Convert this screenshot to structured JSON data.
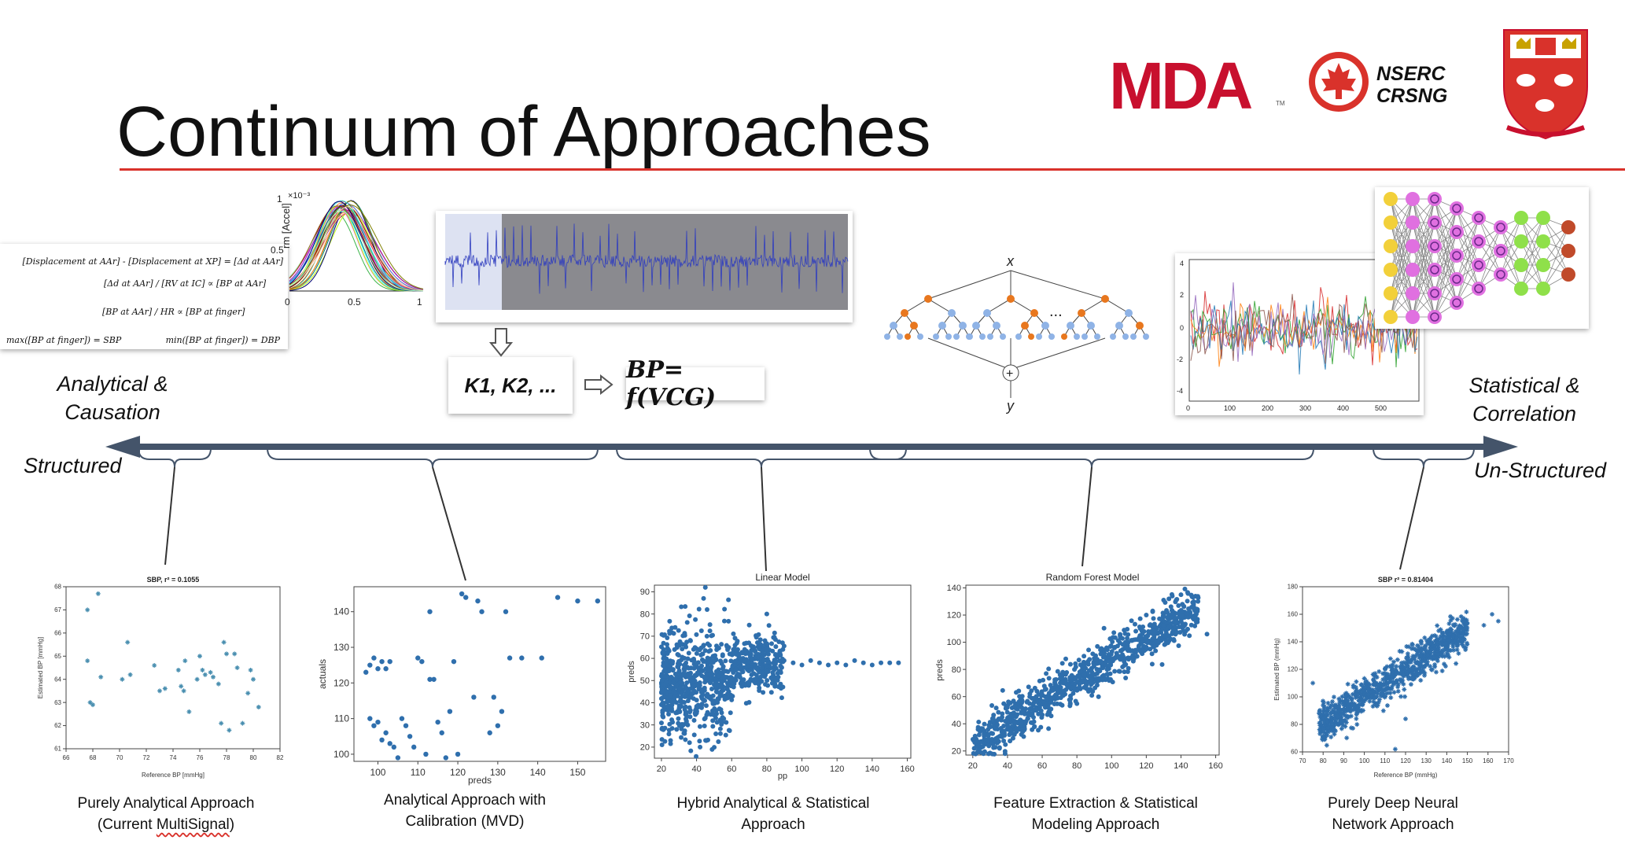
{
  "slide": {
    "title": "Continuum of Approaches",
    "logos": {
      "mda": "MDA",
      "nserc_line1": "NSERC",
      "nserc_line2": "CRSNG"
    }
  },
  "top_row": {
    "equations": [
      "[Displacement at AAr] - [Displacement at XP] = [Δd at AAr]",
      "[Δd at AAr] / [RV at IC] ∝ [BP at AAr]",
      "[BP at AAr] / HR ∝ [BP at finger]",
      "max([BP at finger]) = SBP",
      "min([BP at finger]) = DBP"
    ],
    "curve_plot": {
      "ylabel": "rm [Accel]",
      "y_exp": "×10⁻³",
      "yticks": [
        "1",
        "0.5"
      ],
      "xticks": [
        "0",
        "0.5",
        "1"
      ]
    },
    "k_box": "K1, K2, ...",
    "bp_formula": "BP= f(VCG)",
    "tree_ellipsis": "...",
    "tree_labels": {
      "input": "x",
      "output": "y",
      "sum": "+"
    },
    "noise_plot": {
      "yticks": [
        "4",
        "2",
        "0",
        "-2",
        "-4"
      ],
      "xticks": [
        "0",
        "100",
        "200",
        "300",
        "400",
        "500"
      ]
    }
  },
  "axis": {
    "left_top": "Analytical &",
    "left_bottom": "Causation",
    "left_end": "Structured",
    "right_top": "Statistical &",
    "right_bottom": "Correlation",
    "right_end": "Un-Structured"
  },
  "approaches": [
    {
      "line1": "Purely Analytical Approach",
      "line2_pre": "(Current ",
      "line2_wavy": "MultiSignal",
      "line2_post": ")"
    },
    {
      "line1": "Analytical Approach with",
      "line2": "Calibration (MVD)"
    },
    {
      "line1": "Hybrid Analytical & Statistical",
      "line2": "Approach"
    },
    {
      "line1": "Feature Extraction & Statistical",
      "line2": "Modeling Approach"
    },
    {
      "line1": "Purely Deep Neural",
      "line2": "Network Approach"
    }
  ],
  "chart_data": [
    {
      "type": "scatter",
      "title": "SBP, r² = 0.1055",
      "xlabel": "Reference BP [mmHg]",
      "ylabel": "Estimated BP [mmHg]",
      "xlim": [
        66,
        82
      ],
      "ylim": [
        61,
        68
      ],
      "xticks": [
        66,
        68,
        70,
        72,
        74,
        76,
        78,
        80,
        82
      ],
      "yticks": [
        61,
        62,
        63,
        64,
        65,
        66,
        67,
        68
      ],
      "color": "#4a8fb0",
      "marker": "star",
      "points": [
        [
          67.6,
          67.0
        ],
        [
          68.4,
          67.7
        ],
        [
          67.6,
          64.8
        ],
        [
          67.8,
          63.0
        ],
        [
          68.0,
          62.9
        ],
        [
          68.6,
          64.1
        ],
        [
          70.2,
          64.0
        ],
        [
          70.6,
          65.6
        ],
        [
          70.8,
          64.2
        ],
        [
          72.6,
          64.6
        ],
        [
          73.0,
          63.5
        ],
        [
          73.4,
          63.6
        ],
        [
          74.4,
          64.4
        ],
        [
          74.6,
          63.7
        ],
        [
          74.8,
          63.5
        ],
        [
          74.9,
          64.8
        ],
        [
          75.2,
          62.6
        ],
        [
          75.8,
          64.0
        ],
        [
          76.0,
          65.0
        ],
        [
          76.2,
          64.4
        ],
        [
          76.4,
          64.2
        ],
        [
          76.8,
          64.3
        ],
        [
          77.0,
          64.1
        ],
        [
          77.4,
          63.8
        ],
        [
          77.6,
          62.1
        ],
        [
          77.8,
          65.6
        ],
        [
          78.0,
          65.1
        ],
        [
          78.2,
          61.8
        ],
        [
          78.6,
          65.1
        ],
        [
          78.8,
          64.5
        ],
        [
          79.2,
          62.1
        ],
        [
          79.6,
          63.4
        ],
        [
          79.8,
          64.4
        ],
        [
          80.0,
          64.0
        ],
        [
          80.4,
          62.8
        ]
      ]
    },
    {
      "type": "scatter",
      "title": "",
      "xlabel": "preds",
      "ylabel": "actuals",
      "xlim": [
        94,
        157
      ],
      "ylim": [
        98,
        147
      ],
      "xticks": [
        100,
        110,
        120,
        130,
        140,
        150
      ],
      "yticks": [
        100,
        110,
        120,
        130,
        140
      ],
      "color": "#2f6fad",
      "marker": "dot",
      "points": [
        [
          97,
          123
        ],
        [
          98,
          125
        ],
        [
          99,
          127
        ],
        [
          100,
          124
        ],
        [
          101,
          126
        ],
        [
          102,
          124
        ],
        [
          103,
          126
        ],
        [
          98,
          110
        ],
        [
          99,
          108
        ],
        [
          100,
          109
        ],
        [
          101,
          104
        ],
        [
          102,
          106
        ],
        [
          103,
          103
        ],
        [
          104,
          102
        ],
        [
          105,
          99
        ],
        [
          106,
          110
        ],
        [
          107,
          108
        ],
        [
          108,
          105
        ],
        [
          109,
          102
        ],
        [
          110,
          127
        ],
        [
          111,
          126
        ],
        [
          112,
          100
        ],
        [
          113,
          140
        ],
        [
          113,
          121
        ],
        [
          114,
          121
        ],
        [
          115,
          109
        ],
        [
          116,
          106
        ],
        [
          117,
          99
        ],
        [
          118,
          112
        ],
        [
          119,
          126
        ],
        [
          120,
          100
        ],
        [
          121,
          145
        ],
        [
          122,
          144
        ],
        [
          124,
          116
        ],
        [
          125,
          143
        ],
        [
          126,
          140
        ],
        [
          128,
          106
        ],
        [
          129,
          116
        ],
        [
          130,
          108
        ],
        [
          131,
          112
        ],
        [
          132,
          140
        ],
        [
          133,
          127
        ],
        [
          136,
          127
        ],
        [
          141,
          127
        ],
        [
          145,
          144
        ],
        [
          150,
          143
        ],
        [
          155,
          143
        ]
      ]
    },
    {
      "type": "scatter",
      "title": "Linear Model",
      "xlabel": "pp",
      "ylabel": "preds",
      "xlim": [
        16,
        162
      ],
      "ylim": [
        15,
        93
      ],
      "xticks": [
        20,
        40,
        60,
        80,
        100,
        120,
        140,
        160
      ],
      "yticks": [
        20,
        30,
        40,
        50,
        60,
        70,
        80,
        90
      ],
      "color": "#2f6fad",
      "marker": "dot",
      "dense_cloud": {
        "x_range": [
          20,
          90
        ],
        "y_center": 48,
        "y_spread": 12,
        "count": 900
      },
      "tail_points": [
        [
          95,
          58
        ],
        [
          100,
          57
        ],
        [
          105,
          59
        ],
        [
          110,
          58
        ],
        [
          115,
          57
        ],
        [
          120,
          58
        ],
        [
          125,
          57
        ],
        [
          130,
          59
        ],
        [
          135,
          58
        ],
        [
          140,
          57
        ],
        [
          145,
          58
        ],
        [
          150,
          58
        ],
        [
          155,
          58
        ],
        [
          45,
          92
        ],
        [
          44,
          87
        ],
        [
          46,
          82
        ],
        [
          42,
          20
        ],
        [
          36,
          22
        ],
        [
          80,
          80
        ],
        [
          70,
          75
        ]
      ]
    },
    {
      "type": "scatter",
      "title": "Random Forest Model",
      "xlabel": "",
      "ylabel": "preds",
      "xlim": [
        16,
        162
      ],
      "ylim": [
        17,
        142
      ],
      "xticks": [
        20,
        40,
        60,
        80,
        100,
        120,
        140,
        160
      ],
      "yticks": [
        20,
        40,
        60,
        80,
        100,
        120,
        140
      ],
      "color": "#2f6fad",
      "marker": "dot",
      "dense_cloud": {
        "x_range": [
          20,
          150
        ],
        "slope": 0.78,
        "intercept": 9,
        "y_spread": 8,
        "count": 900
      },
      "tail_points": [
        [
          155,
          106
        ],
        [
          148,
          112
        ],
        [
          140,
          135
        ],
        [
          135,
          134
        ],
        [
          130,
          131
        ],
        [
          120,
          120
        ],
        [
          124,
          112
        ]
      ]
    },
    {
      "type": "scatter",
      "title": "SBP r² = 0.81404",
      "xlabel": "Reference BP (mmHg)",
      "ylabel": "Estimated BP (mmHg)",
      "xlim": [
        70,
        170
      ],
      "ylim": [
        60,
        180
      ],
      "xticks": [
        70,
        80,
        90,
        100,
        110,
        120,
        130,
        140,
        150,
        160,
        170
      ],
      "yticks": [
        60,
        80,
        100,
        120,
        140,
        160,
        180
      ],
      "color": "#2f6fad",
      "marker": "star",
      "dense_cloud": {
        "x_range": [
          78,
          150
        ],
        "slope": 1.0,
        "intercept": 0,
        "y_spread": 7,
        "count": 900
      },
      "tail_points": [
        [
          162,
          160
        ],
        [
          165,
          155
        ],
        [
          158,
          152
        ],
        [
          120,
          84
        ],
        [
          115,
          62
        ],
        [
          75,
          110
        ]
      ]
    }
  ]
}
